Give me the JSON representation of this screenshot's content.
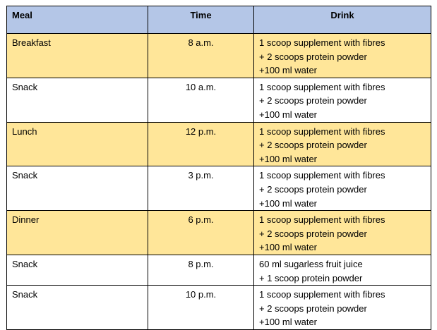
{
  "table": {
    "header": [
      "Meal",
      "Time",
      "Drink"
    ],
    "rows": [
      {
        "meal": "Breakfast",
        "time": "8 a.m.",
        "drink": [
          "1 scoop supplement with fibres",
          "+ 2 scoops protein powder",
          "+100 ml water"
        ]
      },
      {
        "meal": "Snack",
        "time": "10 a.m.",
        "drink": [
          "1 scoop supplement with fibres",
          "+ 2 scoops protein powder",
          "+100 ml water"
        ]
      },
      {
        "meal": "Lunch",
        "time": "12 p.m.",
        "drink": [
          "1 scoop supplement with fibres",
          "+ 2 scoops protein powder",
          "+100 ml water"
        ]
      },
      {
        "meal": "Snack",
        "time": "3 p.m.",
        "drink": [
          "1 scoop supplement with fibres",
          "+ 2 scoops protein powder",
          "+100 ml water"
        ]
      },
      {
        "meal": "Dinner",
        "time": "6 p.m.",
        "drink": [
          "1 scoop supplement with fibres",
          "+ 2 scoops protein powder",
          "+100 ml water"
        ]
      },
      {
        "meal": "Snack",
        "time": "8 p.m.",
        "drink": [
          "60 ml sugarless fruit juice",
          "+ 1 scoop protein powder"
        ]
      },
      {
        "meal": "Snack",
        "time": "10 p.m.",
        "drink": [
          "1 scoop supplement with fibres",
          "+ 2 scoops protein powder",
          "+100 ml water"
        ]
      }
    ]
  }
}
